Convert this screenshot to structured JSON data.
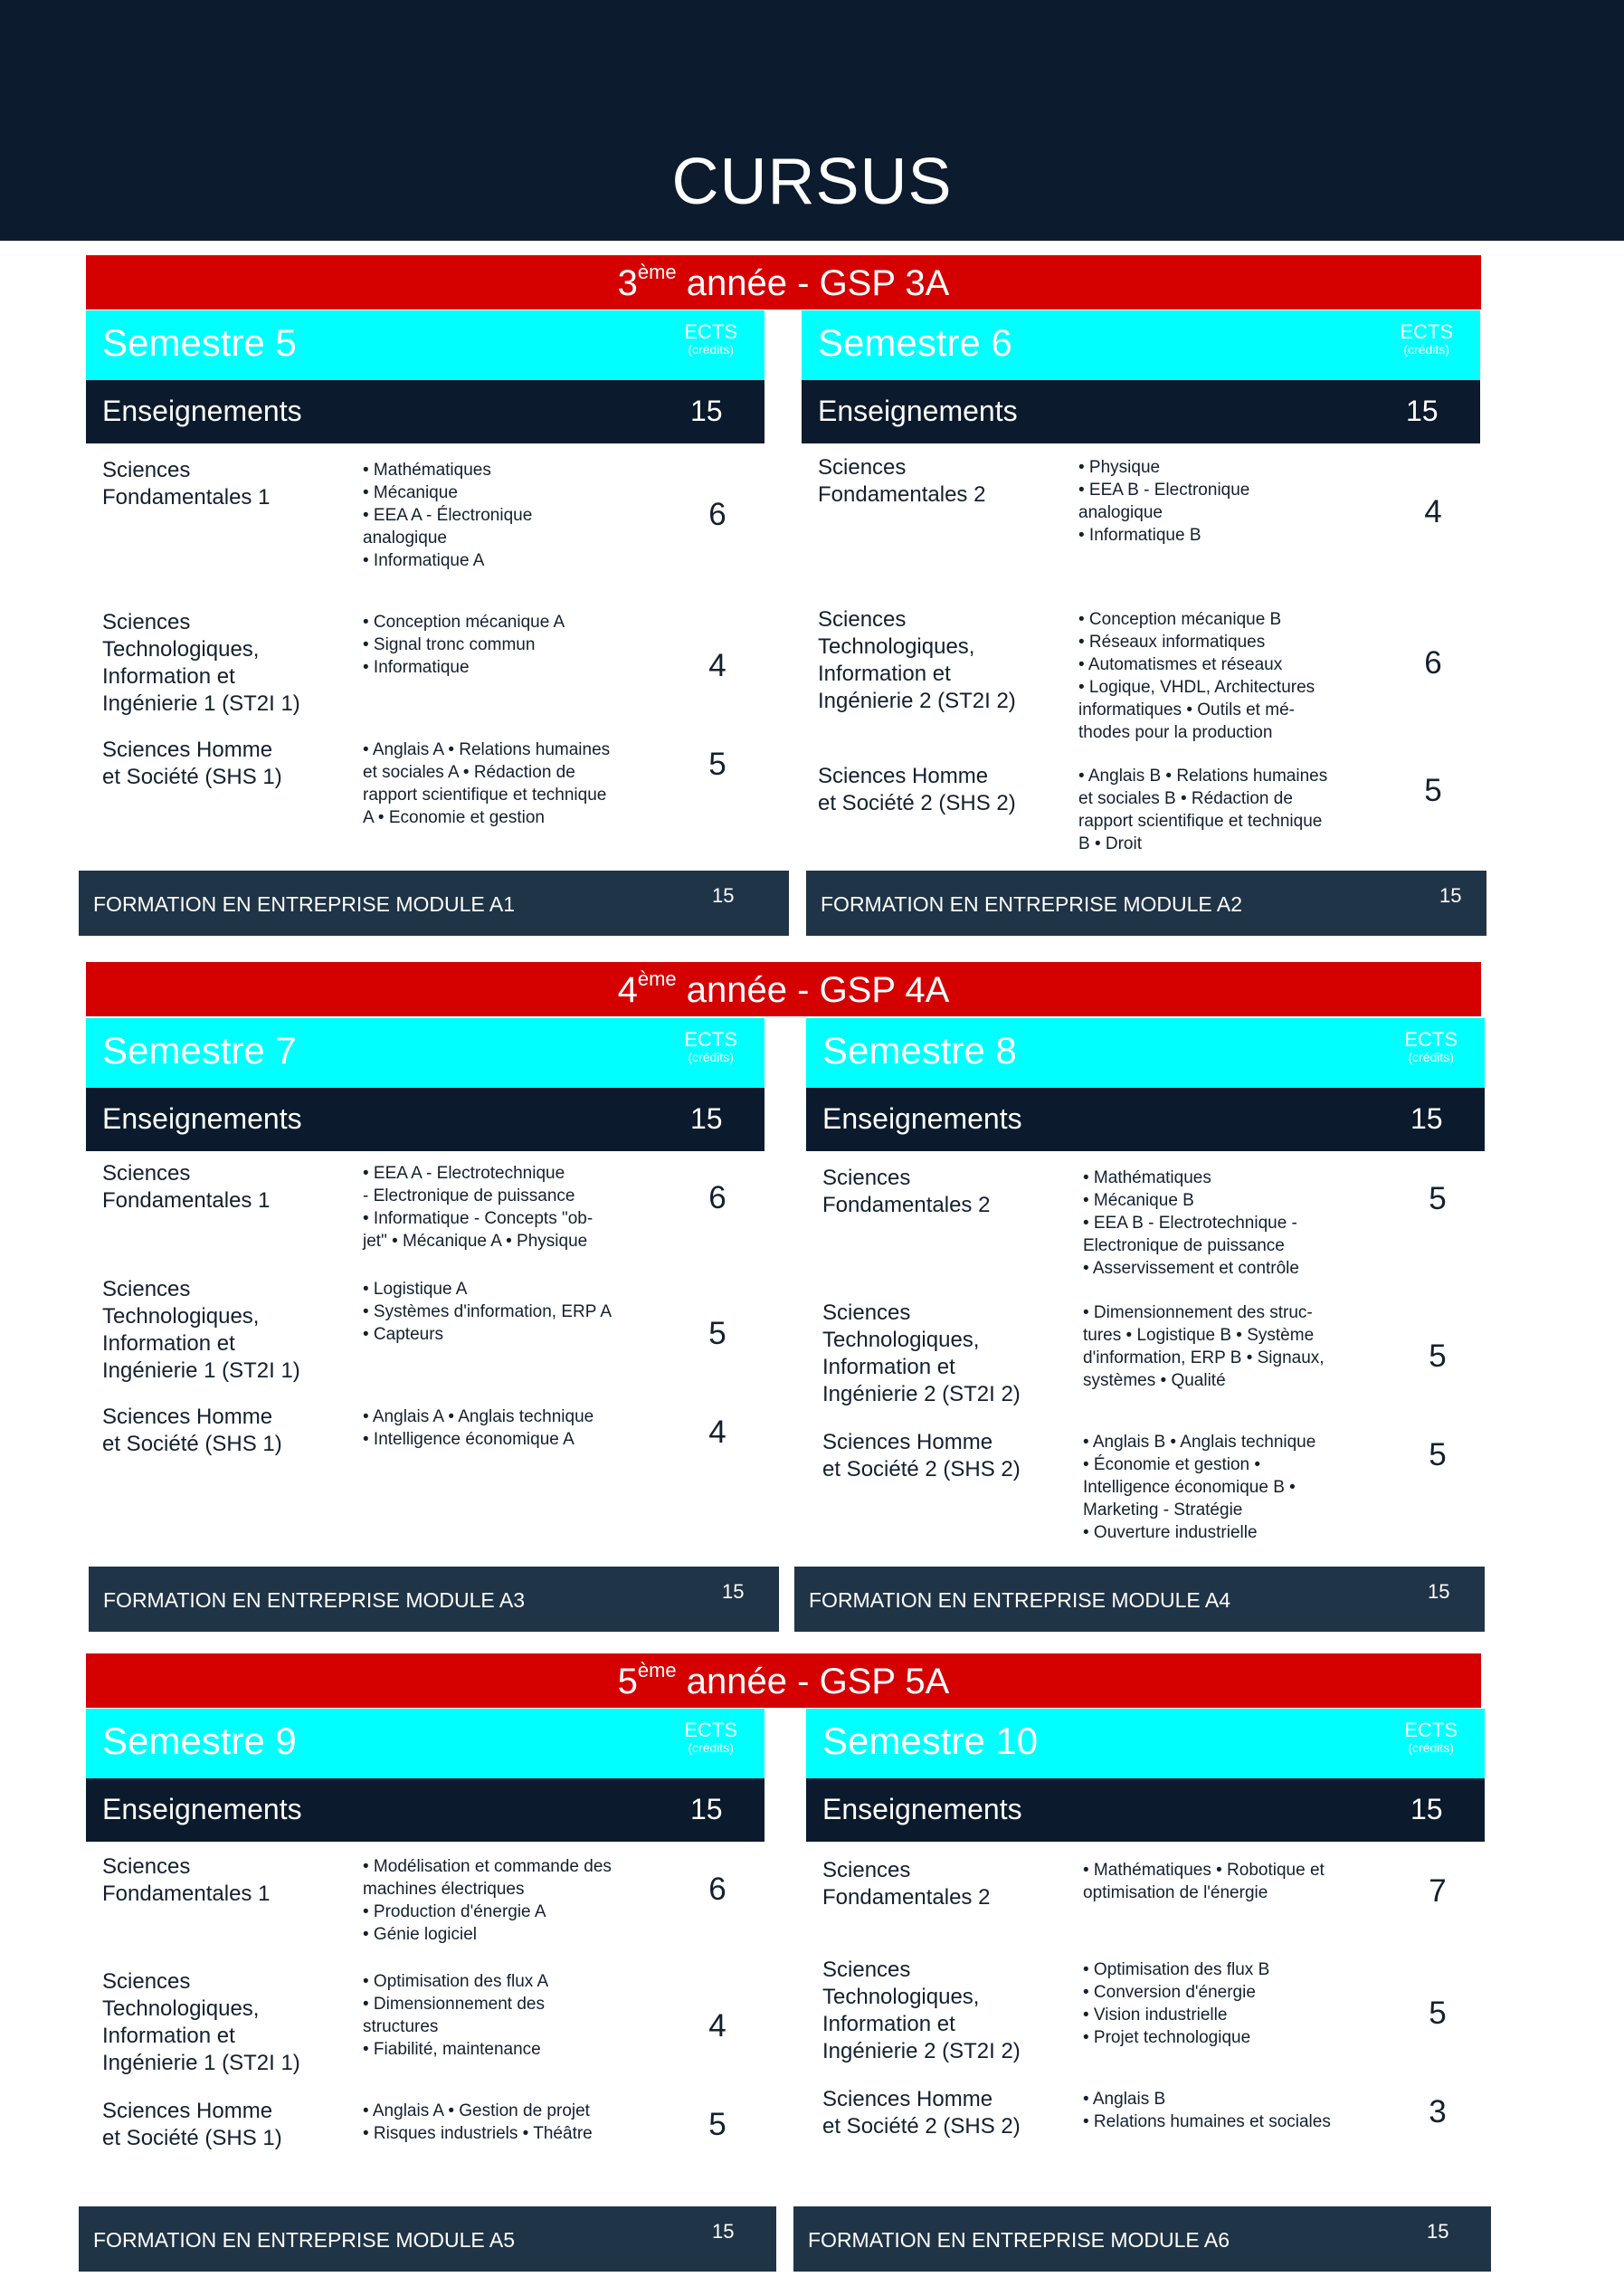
{
  "header": {
    "title": "CURSUS"
  },
  "colors": {
    "header": "#0c1b2e",
    "year_bar": "#d50000",
    "semester_bar": "#00ffff",
    "teaching_bar": "#0b1a2c",
    "formation_bar": "#203447"
  },
  "ects_label": "ECTS",
  "ects_sub": "(crédits)",
  "teaching_label": "Enseignements",
  "years": [
    {
      "num": "3",
      "sup": "ème",
      "rest": " année - GSP 3A",
      "semesters": [
        {
          "title": "Semestre 5",
          "total": "15",
          "rows": [
            {
              "label": [
                "Sciences",
                "Fondamentales 1"
              ],
              "items": [
                "• Mathématiques",
                "• Mécanique",
                "• EEA A - Électronique",
                "analogique",
                "• Informatique A"
              ],
              "ects": "6"
            },
            {
              "label": [
                "Sciences",
                "Technologiques,",
                "Information et",
                "Ingénierie 1 (ST2I 1)"
              ],
              "items": [
                "• Conception mécanique A",
                "• Signal tronc commun",
                "• Informatique"
              ],
              "ects": "4"
            },
            {
              "label": [
                "Sciences Homme",
                "et Société (SHS 1)"
              ],
              "items": [
                "• Anglais A • Relations humaines",
                "et sociales A • Rédaction de",
                "rapport scientifique et technique",
                "A • Economie et gestion"
              ],
              "ects": "5"
            }
          ],
          "formation": {
            "label": "FORMATION EN ENTREPRISE MODULE A1",
            "ects": "15"
          }
        },
        {
          "title": "Semestre 6",
          "total": "15",
          "rows": [
            {
              "label": [
                "Sciences",
                "Fondamentales 2"
              ],
              "items": [
                "• Physique",
                "• EEA B - Electronique",
                "analogique",
                "• Informatique B"
              ],
              "ects": "4"
            },
            {
              "label": [
                "Sciences",
                "Technologiques,",
                "Information et",
                "Ingénierie 2 (ST2I 2)"
              ],
              "items": [
                "• Conception mécanique B",
                "• Réseaux informatiques",
                "• Automatismes et réseaux",
                "• Logique, VHDL, Architectures",
                "informatiques • Outils et mé-",
                "thodes pour la production"
              ],
              "ects": "6"
            },
            {
              "label": [
                "Sciences Homme",
                "et Société 2 (SHS 2)"
              ],
              "items": [
                "• Anglais B • Relations humaines",
                "et sociales B • Rédaction de",
                "rapport scientifique et technique",
                "B • Droit"
              ],
              "ects": "5"
            }
          ],
          "formation": {
            "label": "FORMATION EN ENTREPRISE MODULE A2",
            "ects": "15"
          }
        }
      ]
    },
    {
      "num": "4",
      "sup": "ème",
      "rest": " année - GSP 4A",
      "semesters": [
        {
          "title": "Semestre 7",
          "total": "15",
          "rows": [
            {
              "label": [
                "Sciences",
                "Fondamentales 1"
              ],
              "items": [
                "• EEA A - Electrotechnique",
                "- Electronique de puissance",
                "• Informatique - Concepts \"ob-",
                "jet\" • Mécanique A • Physique"
              ],
              "ects": "6"
            },
            {
              "label": [
                "Sciences",
                "Technologiques,",
                "Information et",
                "Ingénierie 1 (ST2I 1)"
              ],
              "items": [
                "• Logistique A",
                "• Systèmes d'information, ERP A",
                "• Capteurs"
              ],
              "ects": "5"
            },
            {
              "label": [
                "Sciences Homme",
                "et Société (SHS 1)"
              ],
              "items": [
                "• Anglais A • Anglais technique",
                "• Intelligence économique A"
              ],
              "ects": "4"
            }
          ],
          "formation": {
            "label": "FORMATION EN ENTREPRISE MODULE A3",
            "ects": "15"
          }
        },
        {
          "title": "Semestre 8",
          "total": "15",
          "rows": [
            {
              "label": [
                "Sciences",
                "Fondamentales 2"
              ],
              "items": [
                "• Mathématiques",
                "• Mécanique B",
                "• EEA B - Electrotechnique -",
                "Electronique de puissance",
                "• Asservissement et contrôle"
              ],
              "ects": "5"
            },
            {
              "label": [
                "Sciences",
                "Technologiques,",
                "Information et",
                "Ingénierie 2 (ST2I 2)"
              ],
              "items": [
                "• Dimensionnement des struc-",
                "tures • Logistique B • Système",
                "d'information, ERP B • Signaux,",
                "systèmes • Qualité"
              ],
              "ects": "5"
            },
            {
              "label": [
                "Sciences Homme",
                "et Société 2 (SHS 2)"
              ],
              "items": [
                "• Anglais B • Anglais technique",
                "• Économie et gestion •",
                "Intelligence économique B •",
                "Marketing - Stratégie",
                "• Ouverture industrielle"
              ],
              "ects": "5"
            }
          ],
          "formation": {
            "label": "FORMATION EN ENTREPRISE MODULE A4",
            "ects": "15"
          }
        }
      ]
    },
    {
      "num": "5",
      "sup": "ème",
      "rest": " année - GSP 5A",
      "semesters": [
        {
          "title": "Semestre 9",
          "total": "15",
          "rows": [
            {
              "label": [
                "Sciences",
                "Fondamentales 1"
              ],
              "items": [
                "• Modélisation et commande des",
                "machines électriques",
                "• Production d'énergie A",
                "• Génie logiciel"
              ],
              "ects": "6"
            },
            {
              "label": [
                "Sciences",
                "Technologiques,",
                "Information et",
                "Ingénierie 1 (ST2I 1)"
              ],
              "items": [
                "• Optimisation des flux A",
                "• Dimensionnement des",
                "structures",
                "• Fiabilité, maintenance"
              ],
              "ects": "4"
            },
            {
              "label": [
                "Sciences Homme",
                "et Société (SHS 1)"
              ],
              "items": [
                "• Anglais A • Gestion de projet",
                "• Risques industriels • Théâtre"
              ],
              "ects": "5"
            }
          ],
          "formation": {
            "label": "FORMATION EN ENTREPRISE MODULE A5",
            "ects": "15"
          }
        },
        {
          "title": "Semestre 10",
          "total": "15",
          "rows": [
            {
              "label": [
                "Sciences",
                "Fondamentales 2"
              ],
              "items": [
                "• Mathématiques • Robotique et",
                "optimisation de l'énergie"
              ],
              "ects": "7"
            },
            {
              "label": [
                "Sciences",
                "Technologiques,",
                "Information et",
                "Ingénierie 2 (ST2I 2)"
              ],
              "items": [
                "• Optimisation des flux B",
                "• Conversion d'énergie",
                "• Vision industrielle",
                "• Projet technologique"
              ],
              "ects": "5"
            },
            {
              "label": [
                "Sciences Homme",
                "et Société 2 (SHS 2)"
              ],
              "items": [
                "• Anglais B",
                "• Relations humaines et sociales"
              ],
              "ects": "3"
            }
          ],
          "formation": {
            "label": "FORMATION EN ENTREPRISE MODULE A6",
            "ects": "15"
          }
        }
      ]
    }
  ]
}
